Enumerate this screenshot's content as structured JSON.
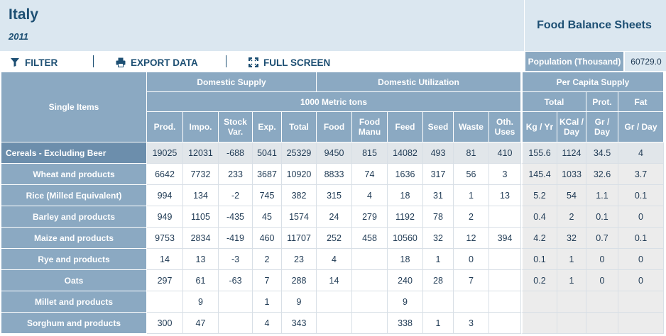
{
  "header": {
    "country": "Italy",
    "year": "2011",
    "title": "Food Balance Sheets"
  },
  "toolbar": {
    "filter_label": "FILTER",
    "export_label": "EXPORT DATA",
    "fullscreen_label": "FULL SCREEN",
    "filter_icon": "filter-icon",
    "export_icon": "printer-icon",
    "fullscreen_icon": "expand-icon"
  },
  "population": {
    "label": "Population (Thousand)",
    "value": "60729.0"
  },
  "table": {
    "groups": {
      "single_items": "Single Items",
      "domestic_supply": "Domestic Supply",
      "domestic_utilization": "Domestic Utilization",
      "per_capita_supply": "Per Capita Supply",
      "metric_tons": "1000 Metric tons",
      "total": "Total",
      "prot": "Prot.",
      "fat": "Fat"
    },
    "columns": [
      "Prod.",
      "Impo.",
      "Stock Var.",
      "Exp.",
      "Total",
      "Food",
      "Food Manu",
      "Feed",
      "Seed",
      "Waste",
      "Oth. Uses",
      "Kg / Yr",
      "KCal / Day",
      "Gr / Day",
      "Gr / Day"
    ],
    "rows": [
      {
        "item": "Cereals - Excluding Beer",
        "values": [
          "19025",
          "12031",
          "-688",
          "5041",
          "25329",
          "9450",
          "815",
          "14082",
          "493",
          "81",
          "410",
          "155.6",
          "1124",
          "34.5",
          "4"
        ]
      },
      {
        "item": "Wheat and products",
        "values": [
          "6642",
          "7732",
          "233",
          "3687",
          "10920",
          "8833",
          "74",
          "1636",
          "317",
          "56",
          "3",
          "145.4",
          "1033",
          "32.6",
          "3.7"
        ]
      },
      {
        "item": "Rice (Milled Equivalent)",
        "values": [
          "994",
          "134",
          "-2",
          "745",
          "382",
          "315",
          "4",
          "18",
          "31",
          "1",
          "13",
          "5.2",
          "54",
          "1.1",
          "0.1"
        ]
      },
      {
        "item": "Barley and products",
        "values": [
          "949",
          "1105",
          "-435",
          "45",
          "1574",
          "24",
          "279",
          "1192",
          "78",
          "2",
          "",
          "0.4",
          "2",
          "0.1",
          "0"
        ]
      },
      {
        "item": "Maize and products",
        "values": [
          "9753",
          "2834",
          "-419",
          "460",
          "11707",
          "252",
          "458",
          "10560",
          "32",
          "12",
          "394",
          "4.2",
          "32",
          "0.7",
          "0.1"
        ]
      },
      {
        "item": "Rye and products",
        "values": [
          "14",
          "13",
          "-3",
          "2",
          "23",
          "4",
          "",
          "18",
          "1",
          "0",
          "",
          "0.1",
          "1",
          "0",
          "0"
        ]
      },
      {
        "item": "Oats",
        "values": [
          "297",
          "61",
          "-63",
          "7",
          "288",
          "14",
          "",
          "240",
          "28",
          "7",
          "",
          "0.2",
          "1",
          "0",
          "0"
        ]
      },
      {
        "item": "Millet and products",
        "values": [
          "",
          "9",
          "",
          "1",
          "9",
          "",
          "",
          "9",
          "",
          "",
          "",
          "",
          "",
          "",
          ""
        ]
      },
      {
        "item": "Sorghum and products",
        "values": [
          "300",
          "47",
          "",
          "4",
          "343",
          "",
          "",
          "338",
          "1",
          "3",
          "",
          "",
          "",
          "",
          ""
        ]
      }
    ]
  }
}
